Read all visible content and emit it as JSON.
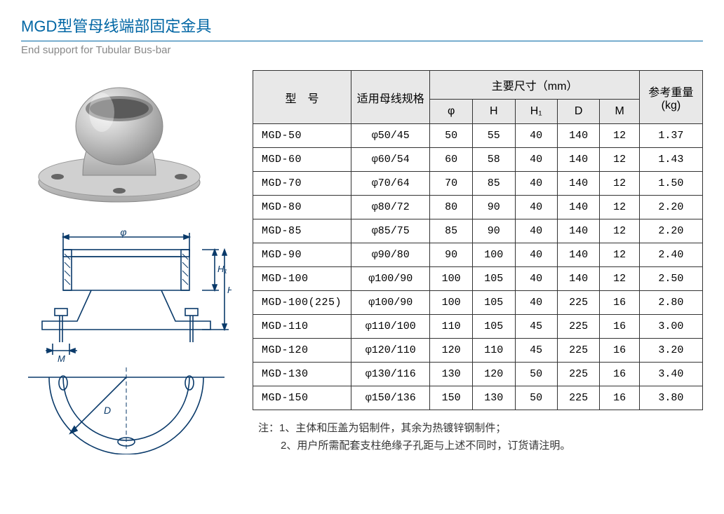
{
  "header": {
    "title_cn": "MGD型管母线端部固定金具",
    "title_en": "End support for Tubular Bus-bar"
  },
  "table": {
    "headers": {
      "model": "型　号",
      "spec": "适用母线规格",
      "dims_group": "主要尺寸（mm）",
      "phi": "φ",
      "H": "H",
      "H1": "H₁",
      "D": "D",
      "M": "M",
      "weight": "参考重量(kg)"
    },
    "rows": [
      {
        "model": "MGD-50",
        "spec": "φ50/45",
        "phi": "50",
        "H": "55",
        "H1": "40",
        "D": "140",
        "M": "12",
        "w": "1.37"
      },
      {
        "model": "MGD-60",
        "spec": "φ60/54",
        "phi": "60",
        "H": "58",
        "H1": "40",
        "D": "140",
        "M": "12",
        "w": "1.43"
      },
      {
        "model": "MGD-70",
        "spec": "φ70/64",
        "phi": "70",
        "H": "85",
        "H1": "40",
        "D": "140",
        "M": "12",
        "w": "1.50"
      },
      {
        "model": "MGD-80",
        "spec": "φ80/72",
        "phi": "80",
        "H": "90",
        "H1": "40",
        "D": "140",
        "M": "12",
        "w": "2.20"
      },
      {
        "model": "MGD-85",
        "spec": "φ85/75",
        "phi": "85",
        "H": "90",
        "H1": "40",
        "D": "140",
        "M": "12",
        "w": "2.20"
      },
      {
        "model": "MGD-90",
        "spec": "φ90/80",
        "phi": "90",
        "H": "100",
        "H1": "40",
        "D": "140",
        "M": "12",
        "w": "2.40"
      },
      {
        "model": "MGD-100",
        "spec": "φ100/90",
        "phi": "100",
        "H": "105",
        "H1": "40",
        "D": "140",
        "M": "12",
        "w": "2.50"
      },
      {
        "model": "MGD-100(225)",
        "spec": "φ100/90",
        "phi": "100",
        "H": "105",
        "H1": "40",
        "D": "225",
        "M": "16",
        "w": "2.80"
      },
      {
        "model": "MGD-110",
        "spec": "φ110/100",
        "phi": "110",
        "H": "105",
        "H1": "45",
        "D": "225",
        "M": "16",
        "w": "3.00"
      },
      {
        "model": "MGD-120",
        "spec": "φ120/110",
        "phi": "120",
        "H": "110",
        "H1": "45",
        "D": "225",
        "M": "16",
        "w": "3.20"
      },
      {
        "model": "MGD-130",
        "spec": "φ130/116",
        "phi": "130",
        "H": "120",
        "H1": "50",
        "D": "225",
        "M": "16",
        "w": "3.40"
      },
      {
        "model": "MGD-150",
        "spec": "φ150/136",
        "phi": "150",
        "H": "130",
        "H1": "50",
        "D": "225",
        "M": "16",
        "w": "3.80"
      }
    ]
  },
  "notes": {
    "prefix": "注：",
    "n1": "1、主体和压盖为铝制件，其余为热镀锌钢制件；",
    "n2": "2、用户所需配套支柱绝缘子孔距与上述不同时，订货请注明。"
  },
  "diagram": {
    "labels": {
      "phi": "φ",
      "H": "H",
      "H1": "H₁",
      "M": "M",
      "D": "D"
    }
  },
  "style": {
    "title_color": "#0066a4",
    "border_color": "#333333",
    "header_bg": "#e8e8e8",
    "text_color": "#333333",
    "subtitle_color": "#888888",
    "background": "#ffffff"
  }
}
